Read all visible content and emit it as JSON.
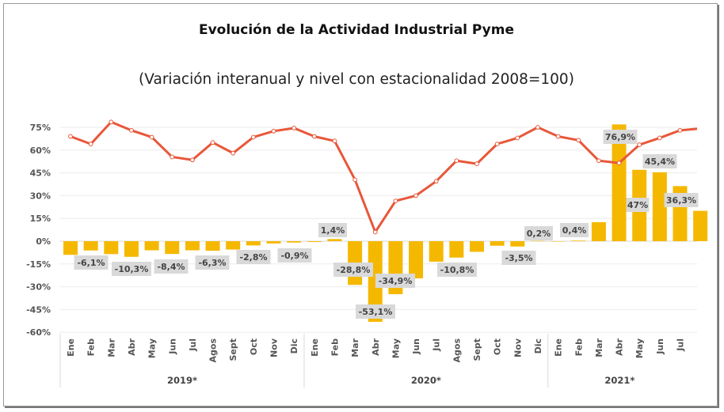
{
  "chart_data": {
    "type": "bar+line",
    "title": "Evolución de la Actividad Industrial Pyme",
    "subtitle": "(Variación interanual y nivel con estacionalidad 2008=100)",
    "ylim": [
      -60,
      75
    ],
    "yticks": [
      "75%",
      "60%",
      "45%",
      "30%",
      "15%",
      "0%",
      "-15%",
      "-30%",
      "-45%",
      "-60%"
    ],
    "ytick_values": [
      75,
      60,
      45,
      30,
      15,
      0,
      -15,
      -30,
      -45,
      -60
    ],
    "grid": true,
    "groups": [
      {
        "label": "2019*",
        "months": [
          "Ene",
          "Feb",
          "Mar",
          "Abr",
          "May",
          "Jun",
          "Jul",
          "Agos",
          "Sept",
          "Oct",
          "Nov",
          "Dic"
        ]
      },
      {
        "label": "2020*",
        "months": [
          "Ene",
          "Feb",
          "Mar",
          "Abr",
          "May",
          "Jun",
          "Jul",
          "Agos",
          "Sept",
          "Oct",
          "Nov",
          "Dic"
        ]
      },
      {
        "label": "2021*",
        "months": [
          "Ene",
          "Feb",
          "Mar",
          "Abr",
          "May",
          "Jun",
          "Jul",
          ""
        ]
      }
    ],
    "bar_series": {
      "values": [
        -9,
        -6.1,
        -8.5,
        -10.3,
        -6,
        -8.4,
        -6,
        -6.3,
        -5.5,
        -2.8,
        -1.5,
        -0.9,
        -0.5,
        1.4,
        -28.8,
        -53.1,
        -34.9,
        -24.5,
        -13.5,
        -10.8,
        -7,
        -3,
        -3.5,
        0.2,
        0,
        0.4,
        12.5,
        76.9,
        47,
        45.4,
        36.3,
        20
      ],
      "color": "#f5b800"
    },
    "line_series": {
      "values": [
        69,
        64,
        78.5,
        73,
        68.5,
        55.5,
        53.5,
        65,
        58,
        68.5,
        72.5,
        74.5,
        69,
        66,
        40.5,
        6,
        26.5,
        30,
        39.5,
        53,
        51,
        64,
        68,
        75,
        69,
        66.5,
        53,
        51.5,
        63.5,
        68,
        73,
        74
      ],
      "color": "#e8573a"
    },
    "data_labels": [
      {
        "index": 1,
        "text": "-6,1%"
      },
      {
        "index": 3,
        "text": "-10,3%"
      },
      {
        "index": 5,
        "text": "-8,4%"
      },
      {
        "index": 7,
        "text": "-6,3%"
      },
      {
        "index": 9,
        "text": "-2,8%"
      },
      {
        "index": 11,
        "text": "-0,9%"
      },
      {
        "index": 13,
        "text": "1,4%"
      },
      {
        "index": 14,
        "text": "-28,8%"
      },
      {
        "index": 15,
        "text": "-53,1%"
      },
      {
        "index": 16,
        "text": "-34,9%"
      },
      {
        "index": 19,
        "text": "-10,8%"
      },
      {
        "index": 22,
        "text": "-3,5%"
      },
      {
        "index": 23,
        "text": "0,2%"
      },
      {
        "index": 25,
        "text": "0,4%"
      },
      {
        "index": 27,
        "text": "76,9%"
      },
      {
        "index": 28,
        "text": "47%"
      },
      {
        "index": 29,
        "text": "45,4%"
      },
      {
        "index": 30,
        "text": "36,3%"
      }
    ]
  }
}
